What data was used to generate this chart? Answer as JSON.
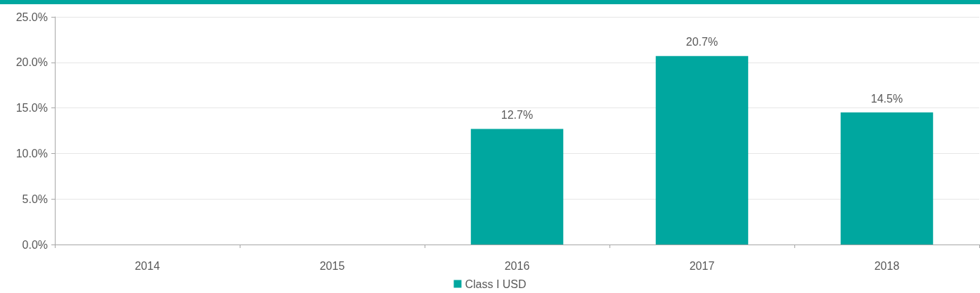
{
  "chart_data": {
    "type": "bar",
    "categories": [
      "2014",
      "2015",
      "2016",
      "2017",
      "2018"
    ],
    "series": [
      {
        "name": "Class I USD",
        "color": "#00a79f",
        "values": [
          null,
          null,
          12.7,
          20.7,
          14.5
        ],
        "value_labels": [
          null,
          null,
          "12.7%",
          "20.7%",
          "14.5%"
        ]
      }
    ],
    "ylim": [
      0,
      25
    ],
    "yticks": [
      {
        "value": 0,
        "label": "0.0%"
      },
      {
        "value": 5,
        "label": "5.0%"
      },
      {
        "value": 10,
        "label": "10.0%"
      },
      {
        "value": 15,
        "label": "15.0%"
      },
      {
        "value": 20,
        "label": "20.0%"
      },
      {
        "value": 25,
        "label": "25.0%"
      }
    ],
    "grid": "y",
    "legend": "bottom"
  }
}
